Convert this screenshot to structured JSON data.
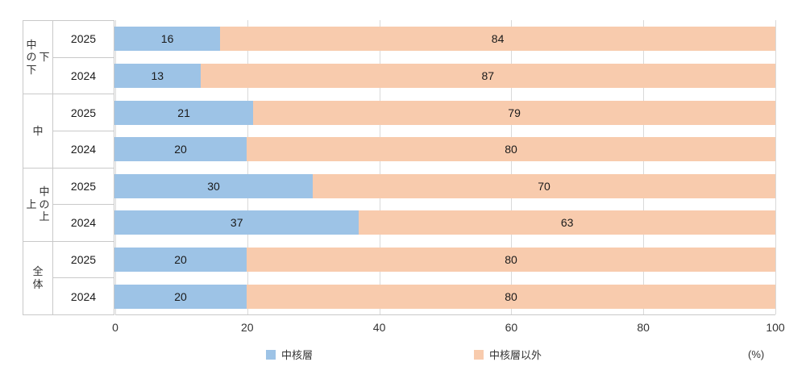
{
  "chart_data": {
    "type": "bar",
    "stacked": true,
    "orientation": "horizontal",
    "title": "",
    "xlabel": "",
    "ylabel": "",
    "xlim": [
      0,
      100
    ],
    "x_ticks": [
      0,
      20,
      40,
      60,
      80,
      100
    ],
    "x_unit": "(%)",
    "grid": true,
    "legend_position": "bottom",
    "colors": [
      "#9DC3E6",
      "#F8CBAD"
    ],
    "series_names": [
      "中核層",
      "中核層以外"
    ],
    "legend": [
      "中核層",
      "中核層以外"
    ],
    "groups": [
      {
        "label": "中の下・下",
        "label_lines": [
          "中の下",
          "下"
        ],
        "rows": [
          {
            "year": "2025",
            "values": [
              16,
              84
            ]
          },
          {
            "year": "2024",
            "values": [
              13,
              87
            ]
          }
        ]
      },
      {
        "label": "中",
        "label_lines": [
          "中"
        ],
        "rows": [
          {
            "year": "2025",
            "values": [
              21,
              79
            ]
          },
          {
            "year": "2024",
            "values": [
              20,
              80
            ]
          }
        ]
      },
      {
        "label": "上・中の上",
        "label_lines": [
          "上",
          "中の上"
        ],
        "rows": [
          {
            "year": "2025",
            "values": [
              30,
              70
            ]
          },
          {
            "year": "2024",
            "values": [
              37,
              63
            ]
          }
        ]
      },
      {
        "label": "全体",
        "label_lines": [
          "全体"
        ],
        "rows": [
          {
            "year": "2025",
            "values": [
              20,
              80
            ]
          },
          {
            "year": "2024",
            "values": [
              20,
              80
            ]
          }
        ]
      }
    ]
  }
}
